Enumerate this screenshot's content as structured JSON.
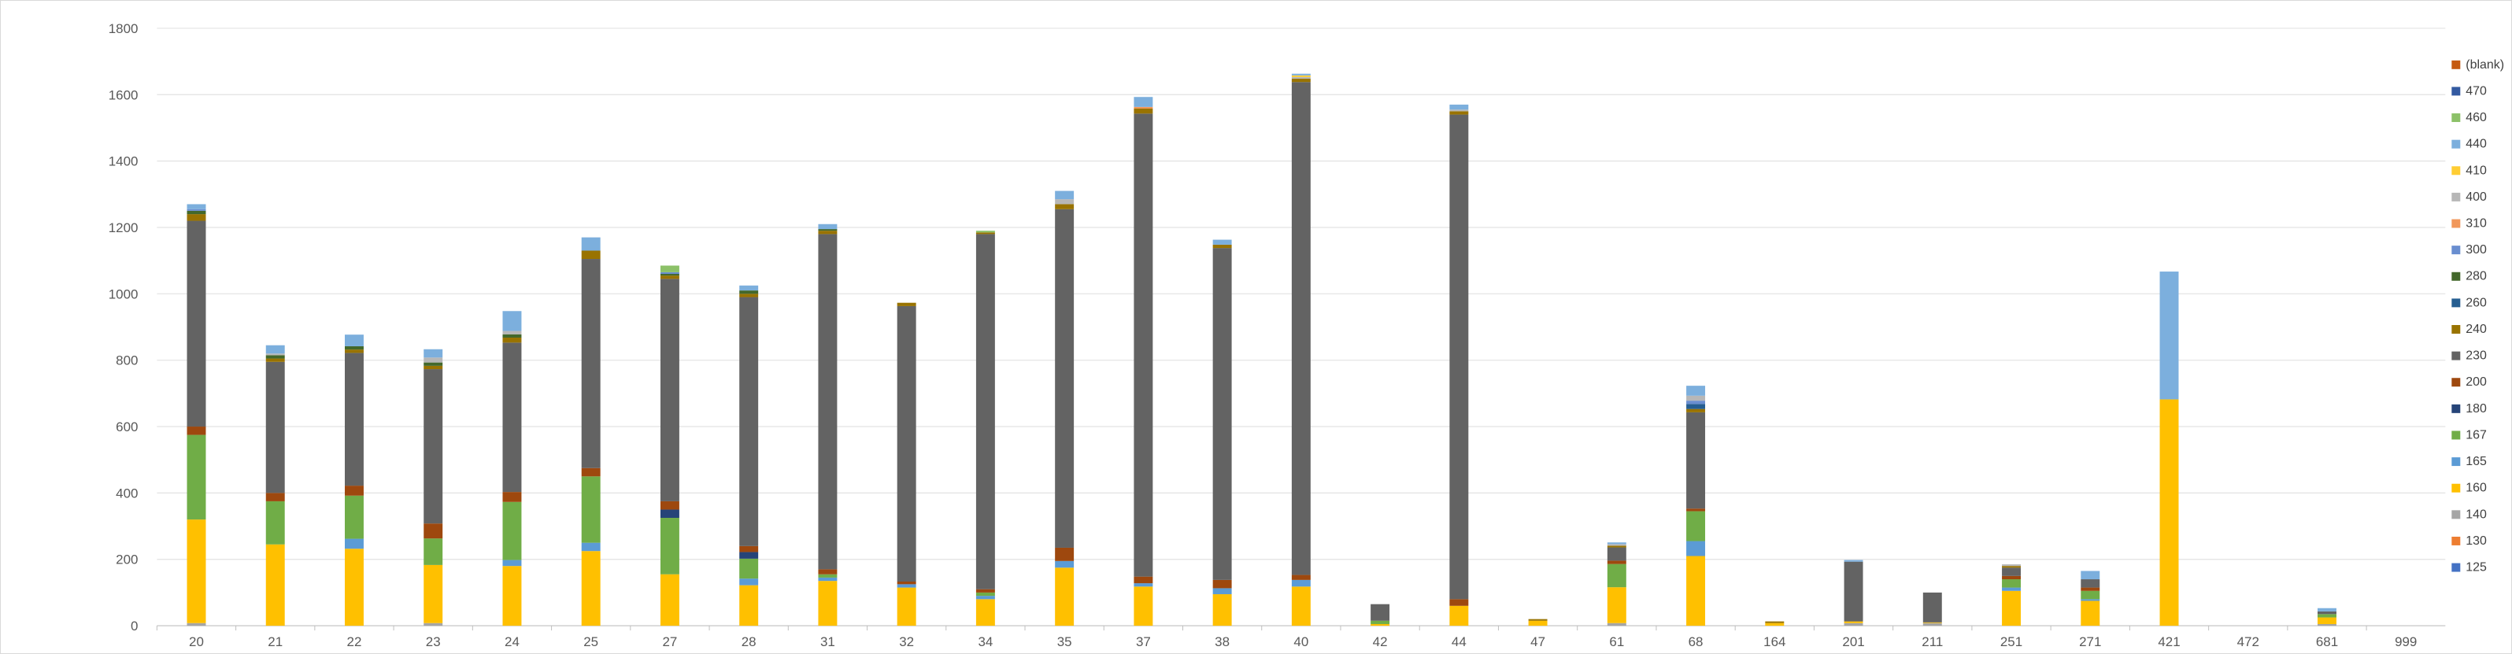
{
  "chart_data": {
    "type": "bar",
    "stacked": true,
    "title": "",
    "xlabel": "",
    "ylabel": "",
    "ylim": [
      0,
      1800
    ],
    "yticks": [
      0,
      200,
      400,
      600,
      800,
      1000,
      1200,
      1400,
      1600,
      1800
    ],
    "grid": "horizontal",
    "legend_position": "right",
    "categories": [
      "20",
      "21",
      "22",
      "23",
      "24",
      "25",
      "27",
      "28",
      "31",
      "32",
      "34",
      "35",
      "37",
      "38",
      "40",
      "42",
      "44",
      "47",
      "61",
      "68",
      "164",
      "201",
      "211",
      "251",
      "271",
      "421",
      "472",
      "681",
      "999"
    ],
    "series": [
      {
        "name": "125",
        "color": "#4472c4",
        "values": [
          0,
          0,
          0,
          0,
          0,
          0,
          0,
          0,
          0,
          0,
          0,
          0,
          0,
          0,
          0,
          0,
          0,
          0,
          0,
          0,
          0,
          0,
          0,
          0,
          0,
          0,
          0,
          0,
          0
        ]
      },
      {
        "name": "130",
        "color": "#ed7d31",
        "values": [
          0,
          0,
          0,
          0,
          0,
          0,
          0,
          0,
          0,
          0,
          0,
          0,
          0,
          0,
          0,
          0,
          0,
          0,
          0,
          0,
          0,
          0,
          0,
          0,
          0,
          0,
          0,
          0,
          0
        ]
      },
      {
        "name": "140",
        "color": "#a5a5a5",
        "values": [
          8,
          0,
          0,
          8,
          0,
          0,
          0,
          0,
          0,
          0,
          0,
          0,
          0,
          0,
          0,
          0,
          0,
          0,
          8,
          0,
          0,
          8,
          8,
          0,
          0,
          0,
          0,
          5,
          0
        ]
      },
      {
        "name": "160",
        "color": "#ffc000",
        "values": [
          312,
          245,
          232,
          175,
          180,
          225,
          155,
          122,
          135,
          115,
          80,
          175,
          118,
          95,
          118,
          5,
          60,
          15,
          108,
          210,
          8,
          5,
          2,
          105,
          75,
          682,
          0,
          20,
          0
        ]
      },
      {
        "name": "165",
        "color": "#5b9bd5",
        "values": [
          0,
          0,
          30,
          0,
          18,
          25,
          0,
          20,
          10,
          10,
          10,
          20,
          10,
          18,
          20,
          0,
          0,
          0,
          0,
          45,
          0,
          0,
          0,
          10,
          5,
          0,
          0,
          0,
          0
        ]
      },
      {
        "name": "167",
        "color": "#70ad47",
        "values": [
          255,
          130,
          130,
          80,
          175,
          200,
          170,
          60,
          10,
          0,
          10,
          0,
          0,
          0,
          0,
          10,
          0,
          0,
          70,
          90,
          0,
          0,
          0,
          25,
          25,
          0,
          0,
          10,
          0
        ]
      },
      {
        "name": "180",
        "color": "#264478",
        "values": [
          0,
          0,
          0,
          0,
          0,
          0,
          25,
          20,
          0,
          0,
          0,
          0,
          0,
          0,
          0,
          0,
          0,
          0,
          0,
          0,
          0,
          0,
          0,
          0,
          0,
          0,
          0,
          0,
          0
        ]
      },
      {
        "name": "200",
        "color": "#9e480e",
        "values": [
          25,
          25,
          30,
          45,
          30,
          25,
          25,
          18,
          15,
          8,
          10,
          40,
          20,
          25,
          15,
          0,
          20,
          0,
          10,
          8,
          0,
          0,
          0,
          10,
          10,
          0,
          0,
          0,
          0
        ]
      },
      {
        "name": "230",
        "color": "#636363",
        "values": [
          620,
          395,
          400,
          465,
          450,
          630,
          670,
          750,
          1010,
          830,
          1070,
          1020,
          1395,
          1000,
          1485,
          50,
          1460,
          0,
          40,
          290,
          0,
          180,
          90,
          25,
          25,
          0,
          0,
          8,
          0
        ]
      },
      {
        "name": "240",
        "color": "#997300",
        "values": [
          20,
          10,
          10,
          10,
          15,
          25,
          10,
          10,
          10,
          10,
          5,
          15,
          15,
          10,
          10,
          0,
          10,
          5,
          5,
          10,
          5,
          0,
          0,
          5,
          0,
          0,
          0,
          0,
          0
        ]
      },
      {
        "name": "260",
        "color": "#255e91",
        "values": [
          0,
          0,
          0,
          0,
          0,
          0,
          0,
          0,
          0,
          0,
          0,
          0,
          0,
          0,
          0,
          0,
          0,
          0,
          0,
          15,
          0,
          0,
          0,
          0,
          0,
          0,
          0,
          0,
          0
        ]
      },
      {
        "name": "280",
        "color": "#43682b",
        "values": [
          10,
          10,
          10,
          10,
          10,
          0,
          5,
          10,
          5,
          0,
          0,
          0,
          0,
          0,
          0,
          0,
          0,
          0,
          0,
          0,
          0,
          0,
          0,
          0,
          0,
          0,
          0,
          0,
          0
        ]
      },
      {
        "name": "300",
        "color": "#698ed0",
        "values": [
          5,
          0,
          0,
          0,
          0,
          0,
          5,
          0,
          0,
          0,
          0,
          0,
          0,
          0,
          0,
          0,
          0,
          0,
          0,
          10,
          0,
          0,
          0,
          0,
          0,
          0,
          0,
          0,
          0
        ]
      },
      {
        "name": "310",
        "color": "#f1975a",
        "values": [
          0,
          0,
          0,
          0,
          0,
          0,
          0,
          0,
          0,
          0,
          0,
          0,
          5,
          0,
          0,
          0,
          0,
          0,
          0,
          0,
          0,
          0,
          0,
          0,
          0,
          0,
          0,
          0,
          0
        ]
      },
      {
        "name": "400",
        "color": "#b7b7b7",
        "values": [
          0,
          5,
          0,
          15,
          10,
          0,
          0,
          0,
          0,
          0,
          0,
          15,
          0,
          0,
          5,
          0,
          5,
          0,
          5,
          15,
          0,
          0,
          0,
          5,
          0,
          0,
          0,
          0,
          0
        ]
      },
      {
        "name": "410",
        "color": "#ffcd33",
        "values": [
          0,
          0,
          0,
          0,
          0,
          0,
          0,
          0,
          0,
          0,
          0,
          0,
          0,
          0,
          5,
          0,
          0,
          0,
          0,
          0,
          0,
          0,
          0,
          0,
          0,
          0,
          0,
          0,
          0
        ]
      },
      {
        "name": "440",
        "color": "#7cafdd",
        "values": [
          15,
          25,
          35,
          25,
          60,
          40,
          0,
          15,
          15,
          0,
          0,
          25,
          30,
          15,
          5,
          0,
          15,
          0,
          5,
          30,
          0,
          5,
          0,
          0,
          25,
          385,
          0,
          10,
          0
        ]
      },
      {
        "name": "460",
        "color": "#8cc168",
        "values": [
          0,
          0,
          0,
          0,
          0,
          0,
          20,
          0,
          0,
          0,
          5,
          0,
          0,
          0,
          0,
          0,
          0,
          0,
          0,
          0,
          0,
          0,
          0,
          0,
          0,
          0,
          0,
          0,
          0
        ]
      },
      {
        "name": "470",
        "color": "#335aa1",
        "values": [
          0,
          0,
          0,
          0,
          0,
          0,
          0,
          0,
          0,
          0,
          0,
          0,
          0,
          0,
          0,
          0,
          0,
          0,
          0,
          0,
          0,
          0,
          0,
          0,
          0,
          0,
          0,
          0,
          0
        ]
      },
      {
        "name": "(blank)",
        "color": "#c55a11",
        "values": [
          0,
          0,
          0,
          0,
          0,
          0,
          0,
          0,
          0,
          0,
          0,
          0,
          0,
          0,
          0,
          0,
          0,
          0,
          0,
          0,
          0,
          0,
          0,
          0,
          0,
          0,
          0,
          0,
          0
        ]
      }
    ]
  }
}
